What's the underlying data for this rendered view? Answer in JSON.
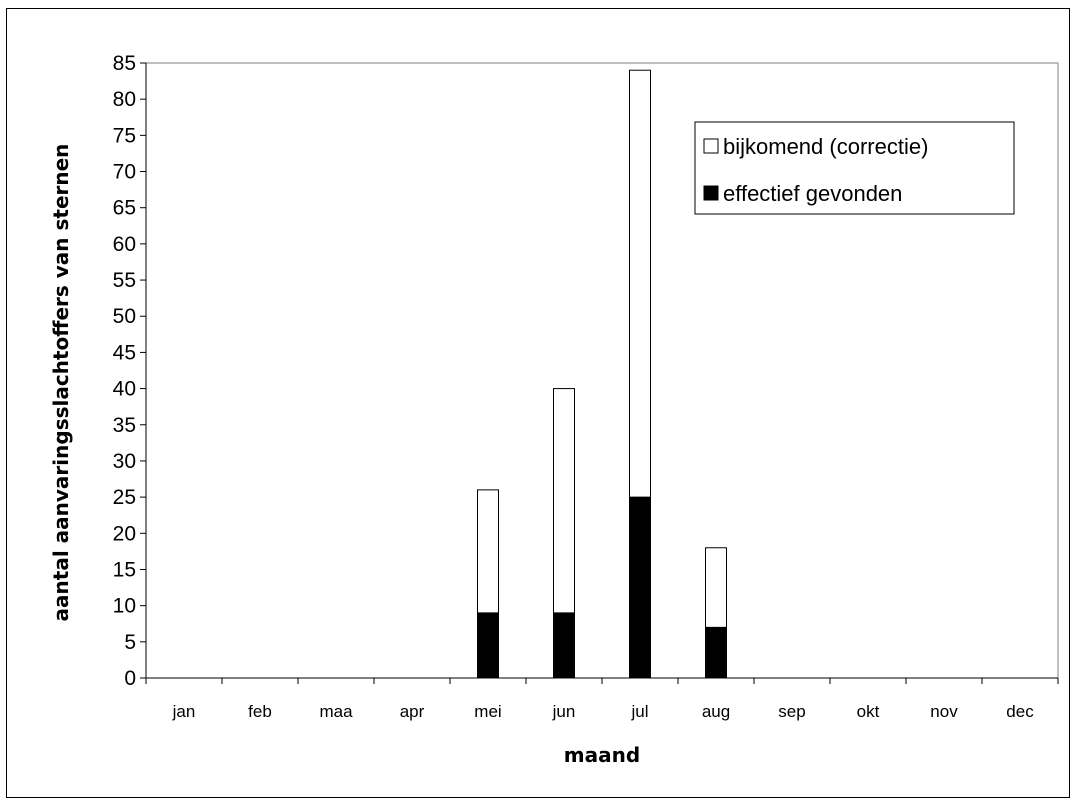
{
  "chart_data": {
    "type": "bar",
    "stacked": true,
    "categories": [
      "jan",
      "feb",
      "maa",
      "apr",
      "mei",
      "jun",
      "jul",
      "aug",
      "sep",
      "okt",
      "nov",
      "dec"
    ],
    "series": [
      {
        "name": "effectief gevonden",
        "values": [
          0,
          0,
          0,
          0,
          9,
          9,
          25,
          7,
          0,
          0,
          0,
          0
        ],
        "color": "#000000"
      },
      {
        "name": "bijkomend (correctie)",
        "values": [
          0,
          0,
          0,
          0,
          17,
          31,
          59,
          11,
          0,
          0,
          0,
          0
        ],
        "color": "#ffffff"
      }
    ],
    "xlabel": "maand",
    "ylabel": "aantal aanvaringsslachtoffers van sternen",
    "ylim": [
      0,
      85
    ],
    "ytick_step": 5,
    "grid": false,
    "legend_position": "top-right",
    "plot_background": "#ffffff"
  }
}
